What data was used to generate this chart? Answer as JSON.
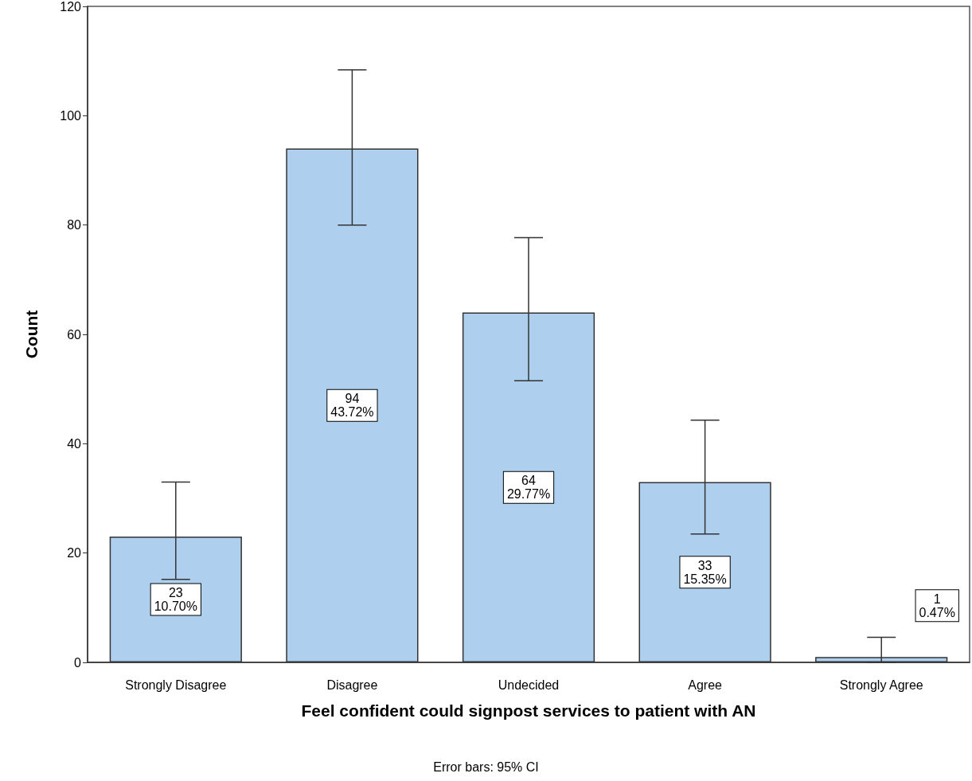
{
  "chart_data": {
    "type": "bar",
    "xlabel": "Feel confident could signpost services to patient with AN",
    "ylabel": "Count",
    "categories": [
      "Strongly Disagree",
      "Disagree",
      "Undecided",
      "Agree",
      "Strongly Agree"
    ],
    "values": [
      23,
      94,
      64,
      33,
      1
    ],
    "errors": [
      [
        15.2,
        33
      ],
      [
        80,
        108.4
      ],
      [
        51.5,
        77.7
      ],
      [
        23.5,
        44.3
      ],
      [
        0,
        4.6
      ]
    ],
    "value_labels": [
      "23\n10.70%",
      "94\n43.72%",
      "64\n29.77%",
      "33\n15.35%",
      "1\n0.47%"
    ],
    "color": "#aed0ee",
    "ylim": [
      0,
      120
    ],
    "yticks": [
      0,
      20,
      40,
      60,
      80,
      100,
      120
    ],
    "grid": false,
    "annotations": [
      "Error bars: 95% CI"
    ]
  }
}
